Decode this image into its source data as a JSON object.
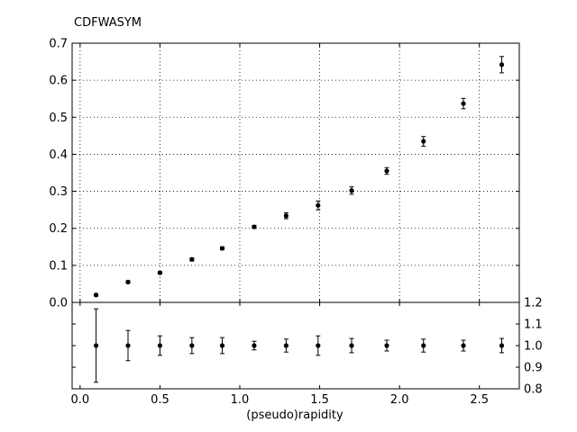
{
  "chart_data": [
    {
      "type": "scatter",
      "panel": "main",
      "title": "CDFWASYM",
      "xlabel": "",
      "ylabel": "",
      "xlim": [
        -0.05,
        2.75
      ],
      "ylim": [
        0,
        0.7
      ],
      "y_ticks": [
        "0.0",
        "0.1",
        "0.2",
        "0.3",
        "0.4",
        "0.5",
        "0.6",
        "0.7"
      ],
      "grid": true,
      "series": [
        {
          "x": [
            0.1,
            0.3,
            0.5,
            0.7,
            0.89,
            1.09,
            1.29,
            1.49,
            1.7,
            1.92,
            2.15,
            2.4,
            2.64
          ],
          "y": [
            0.02,
            0.055,
            0.08,
            0.116,
            0.146,
            0.204,
            0.234,
            0.262,
            0.302,
            0.355,
            0.435,
            0.537,
            0.642
          ],
          "err": [
            0.003,
            0.003,
            0.003,
            0.004,
            0.004,
            0.004,
            0.008,
            0.012,
            0.01,
            0.009,
            0.013,
            0.014,
            0.022
          ]
        }
      ]
    },
    {
      "type": "scatter",
      "panel": "ratio",
      "xlabel": "(pseudo)rapidity",
      "ylabel": "",
      "xlim": [
        -0.05,
        2.75
      ],
      "ylim": [
        0.8,
        1.2
      ],
      "x_ticks": [
        "0.0",
        "0.5",
        "1.0",
        "1.5",
        "2.0",
        "2.5"
      ],
      "y_ticks": [
        "0.8",
        "0.9",
        "1.0",
        "1.1",
        "1.2"
      ],
      "series": [
        {
          "x": [
            0.1,
            0.3,
            0.5,
            0.7,
            0.89,
            1.09,
            1.29,
            1.49,
            1.7,
            1.92,
            2.15,
            2.4,
            2.64
          ],
          "y": [
            1.0,
            1.0,
            1.0,
            1.0,
            1.0,
            1.0,
            1.0,
            1.0,
            1.0,
            1.0,
            1.0,
            1.0,
            1.0
          ],
          "err": [
            0.17,
            0.07,
            0.045,
            0.037,
            0.037,
            0.02,
            0.03,
            0.045,
            0.033,
            0.025,
            0.03,
            0.025,
            0.033
          ]
        }
      ]
    }
  ]
}
